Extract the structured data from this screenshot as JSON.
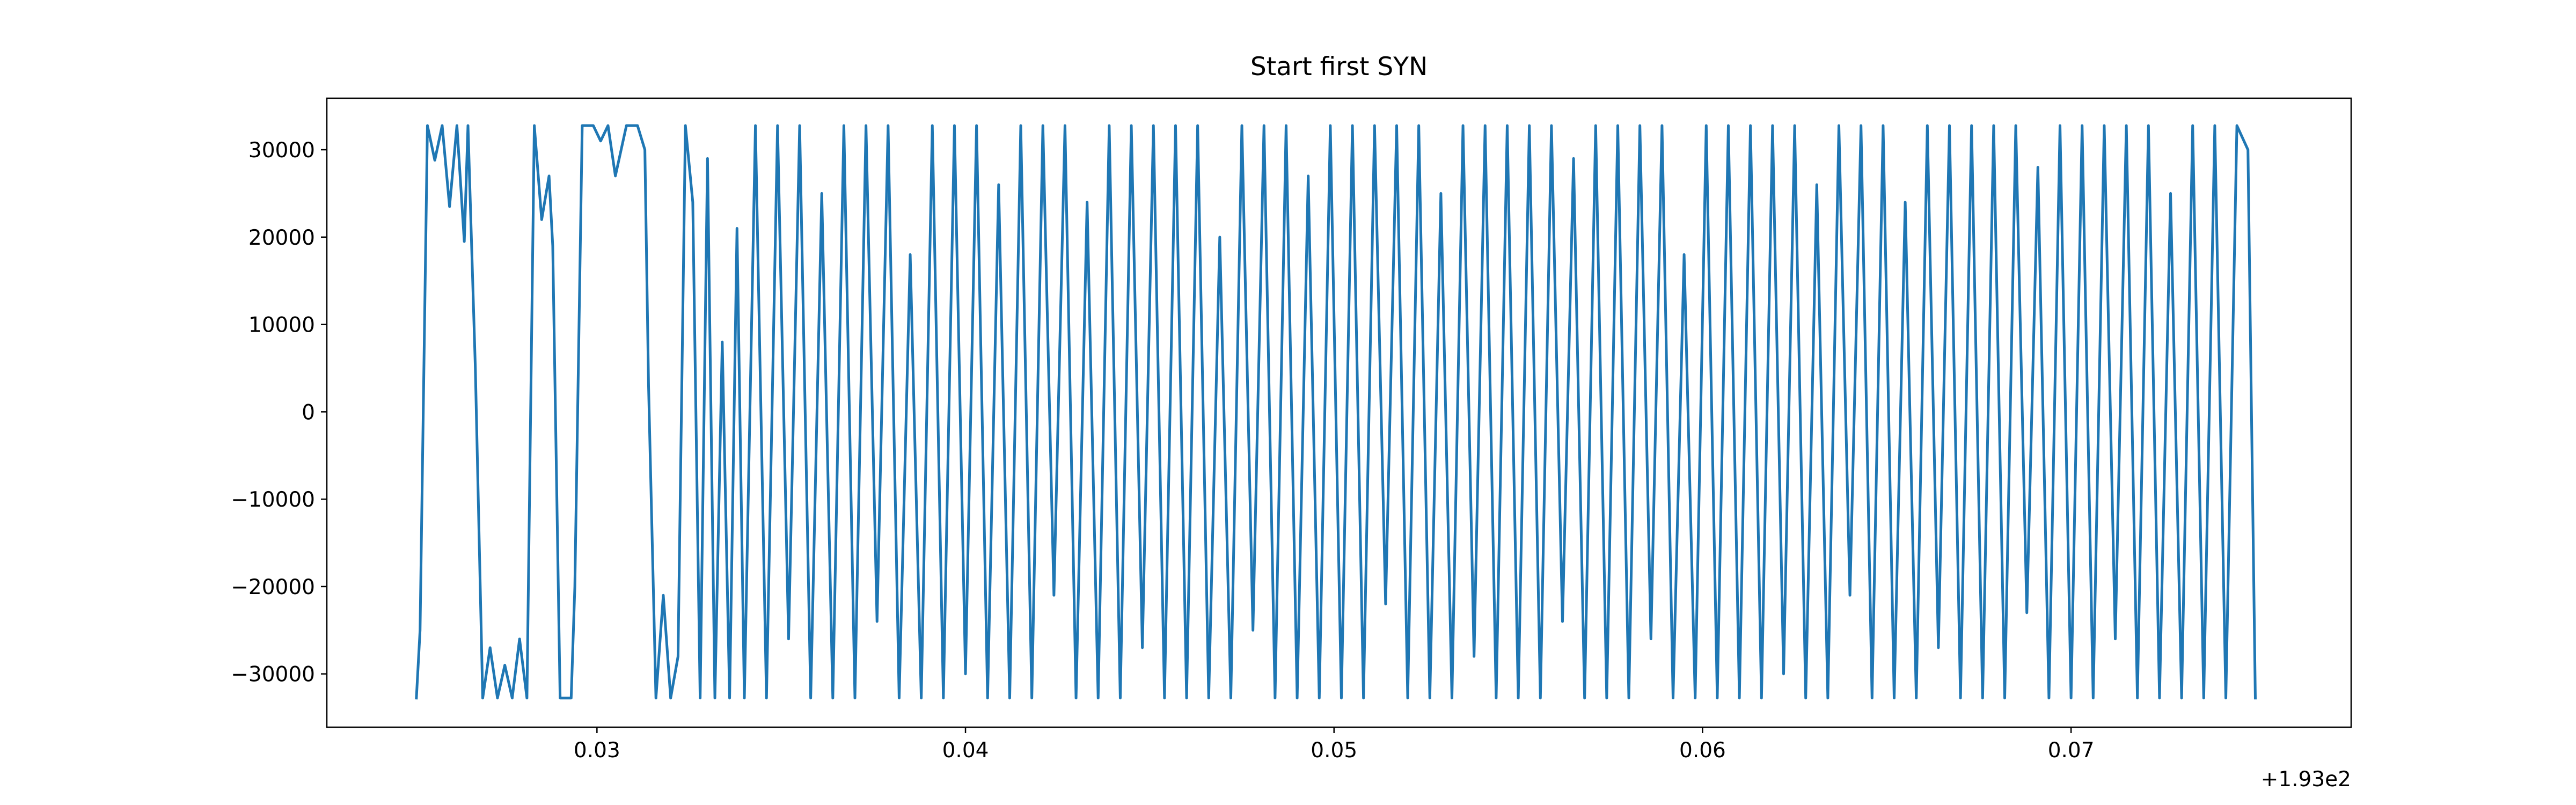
{
  "chart_data": {
    "type": "line",
    "title": "Start first SYN",
    "color": "#1f77b4",
    "x_offset_text": "+1.93e2",
    "xlim": [
      0.02267,
      0.0776
    ],
    "xticks": [
      0.03,
      0.04,
      0.05,
      0.06,
      0.07
    ],
    "ylim": [
      -36100,
      35900
    ],
    "yticks": [
      {
        "value": -30000,
        "label": "−30000"
      },
      {
        "value": -20000,
        "label": "−20000"
      },
      {
        "value": -10000,
        "label": "−10000"
      },
      0,
      10000,
      20000,
      30000
    ],
    "x": [
      0.0251,
      0.0252,
      0.0254,
      0.0256,
      0.0258,
      0.026,
      0.0262,
      0.0264,
      0.0265,
      0.0267,
      0.0269,
      0.0271,
      0.0273,
      0.0275,
      0.0277,
      0.0279,
      0.0281,
      0.0283,
      0.0285,
      0.0287,
      0.0288,
      0.029,
      0.0293,
      0.0294,
      0.0296,
      0.0299,
      0.0301,
      0.0303,
      0.0305,
      0.0308,
      0.0311,
      0.0313,
      0.0314,
      0.0316,
      0.0318,
      0.032,
      0.0322,
      0.0324,
      0.0326,
      0.0328,
      0.033,
      0.0332,
      0.0334,
      0.0336,
      0.0338,
      0.034,
      0.0343,
      0.0346,
      0.0349,
      0.0352,
      0.0355,
      0.0358,
      0.0361,
      0.0364,
      0.0367,
      0.037,
      0.0373,
      0.0376,
      0.0379,
      0.0382,
      0.0385,
      0.0388,
      0.0391,
      0.0394,
      0.0397,
      0.04,
      0.0403,
      0.0406,
      0.0409,
      0.0412,
      0.0415,
      0.0418,
      0.0421,
      0.0424,
      0.0427,
      0.043,
      0.0433,
      0.0436,
      0.0439,
      0.0442,
      0.0445,
      0.0448,
      0.0451,
      0.0454,
      0.0457,
      0.046,
      0.0463,
      0.0466,
      0.0469,
      0.0472,
      0.0475,
      0.0478,
      0.0481,
      0.0484,
      0.0487,
      0.049,
      0.0493,
      0.0496,
      0.0499,
      0.0502,
      0.0505,
      0.0508,
      0.0511,
      0.0514,
      0.0517,
      0.052,
      0.0523,
      0.0526,
      0.0529,
      0.0532,
      0.0535,
      0.0538,
      0.0541,
      0.0544,
      0.0547,
      0.055,
      0.0553,
      0.0556,
      0.0559,
      0.0562,
      0.0565,
      0.0568,
      0.0571,
      0.0574,
      0.0577,
      0.058,
      0.0583,
      0.0586,
      0.0589,
      0.0592,
      0.0595,
      0.0598,
      0.0601,
      0.0604,
      0.0607,
      0.061,
      0.0613,
      0.0616,
      0.0619,
      0.0622,
      0.0625,
      0.0628,
      0.0631,
      0.0634,
      0.0637,
      0.064,
      0.0643,
      0.0646,
      0.0649,
      0.0652,
      0.0655,
      0.0658,
      0.0661,
      0.0664,
      0.0667,
      0.067,
      0.0673,
      0.0676,
      0.0679,
      0.0682,
      0.0685,
      0.0688,
      0.0691,
      0.0694,
      0.0697,
      0.07,
      0.0703,
      0.0706,
      0.0709,
      0.0712,
      0.0715,
      0.0718,
      0.0721,
      0.0724,
      0.0727,
      0.073,
      0.0733,
      0.0736,
      0.0739,
      0.0742,
      0.0745,
      0.0748,
      0.075
    ],
    "values": [
      -32768,
      -25000,
      32767,
      28800,
      32767,
      23500,
      32767,
      19500,
      32767,
      5000,
      -32768,
      -27000,
      -32768,
      -29000,
      -32768,
      -26000,
      -32768,
      32767,
      22000,
      27000,
      19000,
      -32768,
      -32768,
      -20000,
      32767,
      32767,
      31000,
      32767,
      27000,
      32767,
      32767,
      30000,
      3000,
      -32768,
      -21000,
      -32768,
      -28000,
      32767,
      24000,
      -32768,
      29000,
      -32768,
      8000,
      -32768,
      21000,
      -32768,
      32767,
      -32768,
      32767,
      -26000,
      32767,
      -32768,
      25000,
      -32768,
      32767,
      -32768,
      32767,
      -24000,
      32767,
      -32768,
      18000,
      -32768,
      32767,
      -32768,
      32767,
      -30000,
      32767,
      -32768,
      26000,
      -32768,
      32767,
      -32768,
      32767,
      -21000,
      32767,
      -32768,
      24000,
      -32768,
      32767,
      -32768,
      32767,
      -27000,
      32767,
      -32768,
      32767,
      -32768,
      32767,
      -32768,
      20000,
      -32768,
      32767,
      -25000,
      32767,
      -32768,
      32767,
      -32768,
      27000,
      -32768,
      32767,
      -32768,
      32767,
      -32768,
      32767,
      -22000,
      32767,
      -32768,
      32767,
      -32768,
      25000,
      -32768,
      32767,
      -28000,
      32767,
      -32768,
      32767,
      -32768,
      32767,
      -32768,
      32767,
      -24000,
      29000,
      -32768,
      32767,
      -32768,
      32767,
      -32768,
      32767,
      -26000,
      32767,
      -32768,
      18000,
      -32768,
      32767,
      -32768,
      32767,
      -32768,
      32767,
      -32768,
      32767,
      -30000,
      32767,
      -32768,
      26000,
      -32768,
      32767,
      -21000,
      32767,
      -32768,
      32767,
      -32768,
      24000,
      -32768,
      32767,
      -27000,
      32767,
      -32768,
      32767,
      -32768,
      32767,
      -32768,
      32767,
      -23000,
      28000,
      -32768,
      32767,
      -32768,
      32767,
      -32768,
      32767,
      -26000,
      32767,
      -32768,
      32767,
      -32768,
      25000,
      -32768,
      32767,
      -32768,
      32767,
      -32768,
      32767,
      30000,
      -32768
    ]
  }
}
